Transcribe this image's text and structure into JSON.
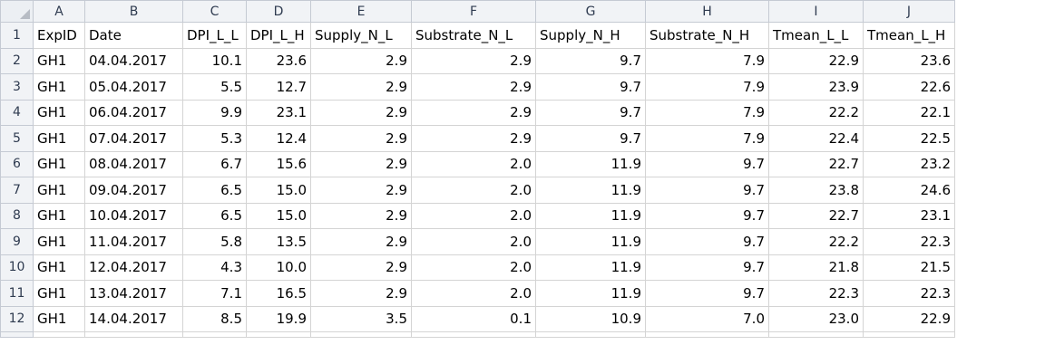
{
  "sheet": {
    "column_letters": [
      "A",
      "B",
      "C",
      "D",
      "E",
      "F",
      "G",
      "H",
      "I",
      "J"
    ],
    "header_row_number": "1",
    "headers": [
      "ExpID",
      "Date",
      "DPI_L_L",
      "DPI_L_H",
      "Supply_N_L",
      "Substrate_N_L",
      "Supply_N_H",
      "Substrate_N_H",
      "Tmean_L_L",
      "Tmean_L_H"
    ],
    "rows": [
      {
        "n": "2",
        "cells": [
          "GH1",
          "04.04.2017",
          "10.1",
          "23.6",
          "2.9",
          "2.9",
          "9.7",
          "7.9",
          "22.9",
          "23.6"
        ]
      },
      {
        "n": "3",
        "cells": [
          "GH1",
          "05.04.2017",
          "5.5",
          "12.7",
          "2.9",
          "2.9",
          "9.7",
          "7.9",
          "23.9",
          "22.6"
        ]
      },
      {
        "n": "4",
        "cells": [
          "GH1",
          "06.04.2017",
          "9.9",
          "23.1",
          "2.9",
          "2.9",
          "9.7",
          "7.9",
          "22.2",
          "22.1"
        ]
      },
      {
        "n": "5",
        "cells": [
          "GH1",
          "07.04.2017",
          "5.3",
          "12.4",
          "2.9",
          "2.9",
          "9.7",
          "7.9",
          "22.4",
          "22.5"
        ]
      },
      {
        "n": "6",
        "cells": [
          "GH1",
          "08.04.2017",
          "6.7",
          "15.6",
          "2.9",
          "2.0",
          "11.9",
          "9.7",
          "22.7",
          "23.2"
        ]
      },
      {
        "n": "7",
        "cells": [
          "GH1",
          "09.04.2017",
          "6.5",
          "15.0",
          "2.9",
          "2.0",
          "11.9",
          "9.7",
          "23.8",
          "24.6"
        ]
      },
      {
        "n": "8",
        "cells": [
          "GH1",
          "10.04.2017",
          "6.5",
          "15.0",
          "2.9",
          "2.0",
          "11.9",
          "9.7",
          "22.7",
          "23.1"
        ]
      },
      {
        "n": "9",
        "cells": [
          "GH1",
          "11.04.2017",
          "5.8",
          "13.5",
          "2.9",
          "2.0",
          "11.9",
          "9.7",
          "22.2",
          "22.3"
        ]
      },
      {
        "n": "10",
        "cells": [
          "GH1",
          "12.04.2017",
          "4.3",
          "10.0",
          "2.9",
          "2.0",
          "11.9",
          "9.7",
          "21.8",
          "21.5"
        ]
      },
      {
        "n": "11",
        "cells": [
          "GH1",
          "13.04.2017",
          "7.1",
          "16.5",
          "2.9",
          "2.0",
          "11.9",
          "9.7",
          "22.3",
          "22.3"
        ]
      },
      {
        "n": "12",
        "cells": [
          "GH1",
          "14.04.2017",
          "8.5",
          "19.9",
          "3.5",
          "0.1",
          "10.9",
          "7.0",
          "23.0",
          "22.9"
        ]
      }
    ]
  }
}
